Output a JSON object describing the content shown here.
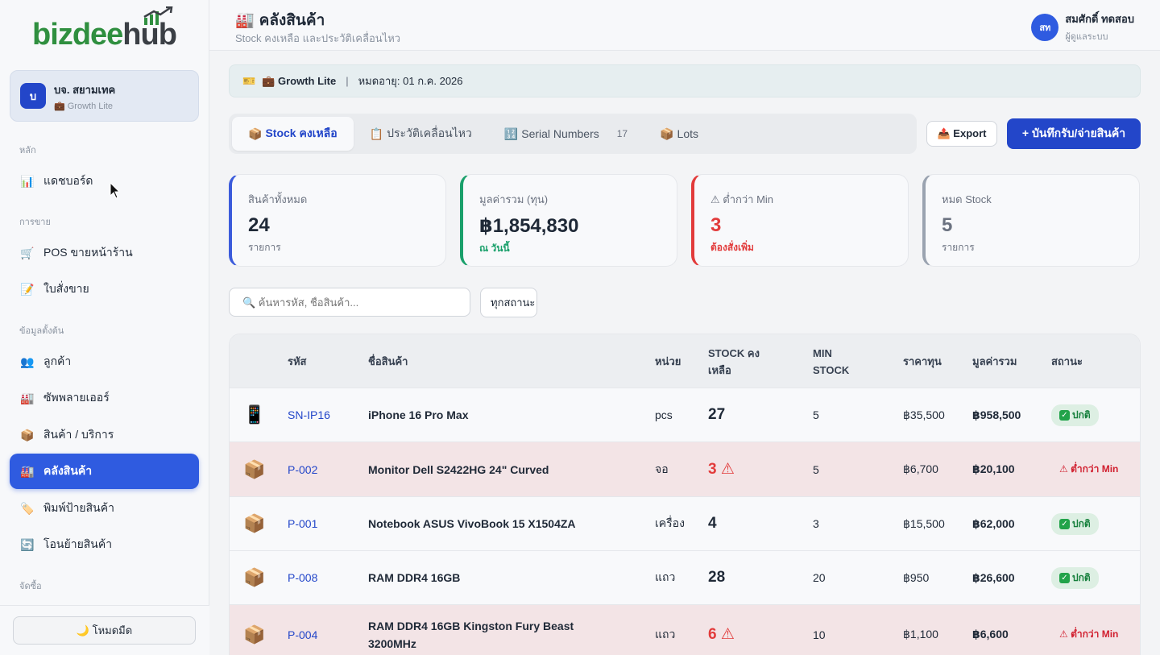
{
  "brand": {
    "logo_main": "bizdee",
    "logo_accent": "hub"
  },
  "company": {
    "initial": "บ",
    "name": "บจ. สยามเทค",
    "plan": "💼 Growth Lite"
  },
  "nav": {
    "sections": [
      "หลัก",
      "การขาย",
      "ข้อมูลตั้งต้น",
      "จัดซื้อ"
    ],
    "items": [
      {
        "icon": "📊",
        "label": "แดชบอร์ด"
      },
      {
        "icon": "🛒",
        "label": "POS ขายหน้าร้าน"
      },
      {
        "icon": "📝",
        "label": "ใบสั่งขาย"
      },
      {
        "icon": "👥",
        "label": "ลูกค้า"
      },
      {
        "icon": "🏭",
        "label": "ซัพพลายเออร์"
      },
      {
        "icon": "📦",
        "label": "สินค้า / บริการ"
      },
      {
        "icon": "🏭",
        "label": "คลังสินค้า"
      },
      {
        "icon": "🏷️",
        "label": "พิมพ์ป้ายสินค้า"
      },
      {
        "icon": "🔄",
        "label": "โอนย้ายสินค้า"
      }
    ],
    "dark_mode": "🌙 โหมดมืด"
  },
  "header": {
    "icon": "🏭",
    "title": "คลังสินค้า",
    "subtitle": "Stock คงเหลือ และประวัติเคลื่อนไหว",
    "user_initials": "สท",
    "user_name": "สมศักดิ์ ทดสอบ",
    "user_role": "ผู้ดูแลระบบ"
  },
  "plan_bar": {
    "icon": "🎫",
    "plan": "💼 Growth Lite",
    "expiry": "หมดอายุ: 01 ก.ค. 2026"
  },
  "tabs": [
    {
      "icon": "📦",
      "label": "Stock คงเหลือ",
      "count": ""
    },
    {
      "icon": "📋",
      "label": "ประวัติเคลื่อนไหว",
      "count": ""
    },
    {
      "icon": "🔢",
      "label": "Serial Numbers",
      "count": "17"
    },
    {
      "icon": "📦",
      "label": "Lots",
      "count": ""
    }
  ],
  "actions": {
    "export": "📤 Export",
    "add": "+ บันทึกรับ/จ่ายสินค้า"
  },
  "stats": [
    {
      "label": "สินค้าทั้งหมด",
      "value": "24",
      "sub": "รายการ",
      "color": "#3b5bdb"
    },
    {
      "label": "มูลค่ารวม (ทุน)",
      "value": "฿1,854,830",
      "sub": "ณ วันนี้",
      "color": "#1aa06b"
    },
    {
      "label": "⚠ ต่ำกว่า Min",
      "value": "3",
      "sub": "ต้องสั่งเพิ่ม",
      "color": "#e23b3b"
    },
    {
      "label": "หมด Stock",
      "value": "5",
      "sub": "รายการ",
      "color": "#9aa3b0"
    }
  ],
  "search": {
    "placeholder": "🔍 ค้นหารหัส, ชื่อสินค้า..."
  },
  "filter": {
    "value": "ทุกสถานะ"
  },
  "table": {
    "headers": [
      "รหัส",
      "ชื่อสินค้า",
      "หน่วย",
      "STOCK คงเหลือ",
      "MIN STOCK",
      "ราคาทุน",
      "มูลค่ารวม",
      "สถานะ"
    ],
    "rows": [
      {
        "icon": "📱",
        "code": "SN-IP16",
        "name": "iPhone 16 Pro Max",
        "unit": "pcs",
        "stock": "27",
        "min": "5",
        "cost": "฿35,500",
        "total": "฿958,500",
        "status": "ปกติ",
        "low": false
      },
      {
        "icon": "📦",
        "code": "P-002",
        "name": "Monitor Dell S2422HG 24\" Curved",
        "unit": "จอ",
        "stock": "3 ⚠",
        "min": "5",
        "cost": "฿6,700",
        "total": "฿20,100",
        "status": "⚠ ต่ำกว่า Min",
        "low": true
      },
      {
        "icon": "📦",
        "code": "P-001",
        "name": "Notebook ASUS VivoBook 15 X1504ZA",
        "unit": "เครื่อง",
        "stock": "4",
        "min": "3",
        "cost": "฿15,500",
        "total": "฿62,000",
        "status": "ปกติ",
        "low": false
      },
      {
        "icon": "📦",
        "code": "P-008",
        "name": "RAM DDR4 16GB",
        "unit": "แถว",
        "stock": "28",
        "min": "20",
        "cost": "฿950",
        "total": "฿26,600",
        "status": "ปกติ",
        "low": false
      },
      {
        "icon": "📦",
        "code": "P-004",
        "name": "RAM DDR4 16GB Kingston Fury Beast 3200MHz",
        "unit": "แถว",
        "stock": "6 ⚠",
        "min": "10",
        "cost": "฿1,100",
        "total": "฿6,600",
        "status": "⚠ ต่ำกว่า Min",
        "low": true
      }
    ]
  }
}
